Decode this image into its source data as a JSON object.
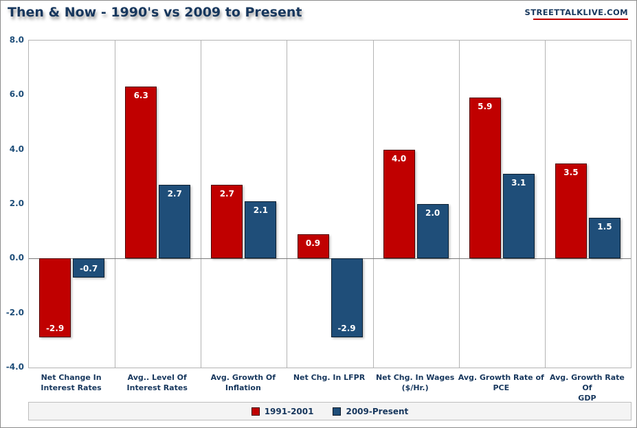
{
  "header": {
    "title": "Then & Now - 1990's vs 2009 to Present",
    "brand": "STREETTALKLIVE.COM"
  },
  "chart_data": {
    "type": "bar",
    "title": "Then & Now - 1990's vs 2009 to Present",
    "xlabel": "",
    "ylabel": "",
    "ylim": [
      -4.0,
      8.0
    ],
    "yticks": [
      8.0,
      6.0,
      4.0,
      2.0,
      0.0,
      -2.0,
      -4.0
    ],
    "grid": "vertical-separators",
    "legend_position": "bottom",
    "categories": [
      [
        "Net Change In",
        "Interest Rates"
      ],
      [
        "Avg.. Level Of",
        "Interest Rates"
      ],
      [
        "Avg. Growth Of",
        "Inflation"
      ],
      [
        "Net Chg. In LFPR"
      ],
      [
        "Net Chg. In Wages",
        "($/Hr.)"
      ],
      [
        "Avg. Growth Rate of",
        "PCE"
      ],
      [
        "Avg. Growth Rate Of",
        "GDP"
      ]
    ],
    "series": [
      {
        "name": "1991-2001",
        "color": "#C00000",
        "values": [
          -2.9,
          6.3,
          2.7,
          0.9,
          4.0,
          5.9,
          3.5
        ]
      },
      {
        "name": "2009-Present",
        "color": "#1F4E79",
        "values": [
          -0.7,
          2.7,
          2.1,
          -2.9,
          2.0,
          3.1,
          1.5
        ]
      }
    ]
  }
}
